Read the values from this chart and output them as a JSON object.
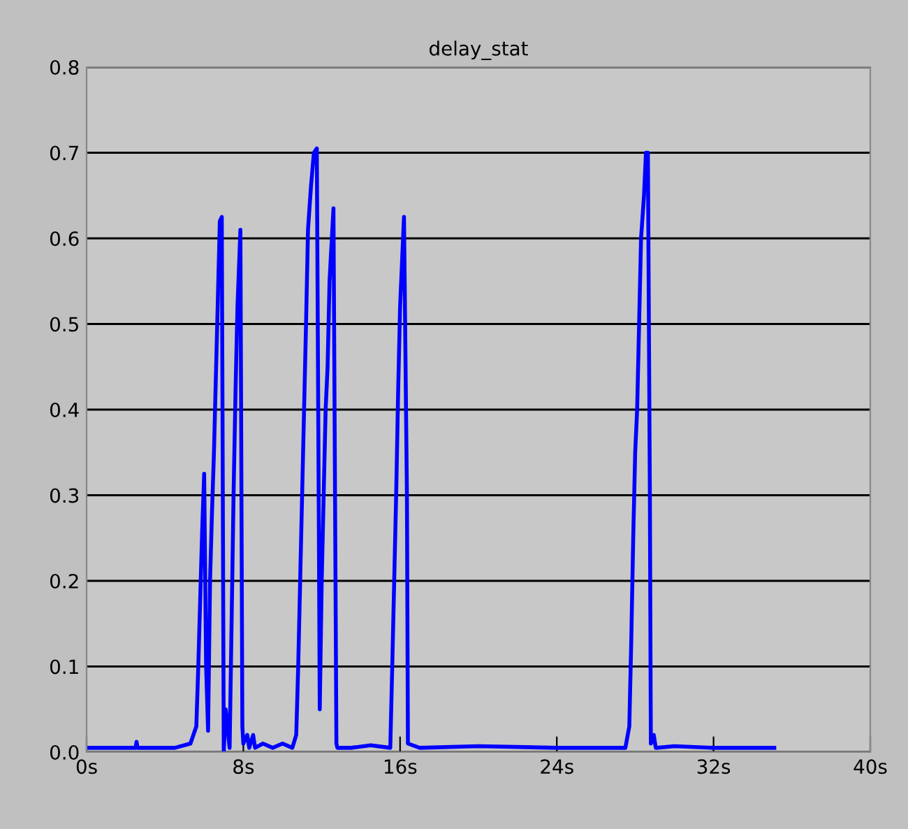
{
  "chart_data": {
    "type": "line",
    "title": "delay_stat",
    "series": [
      {
        "color": "#0000ff",
        "x": [
          0,
          2.5,
          2.55,
          2.6,
          4.5,
          5.3,
          5.6,
          5.7,
          5.8,
          5.9,
          6.0,
          6.1,
          6.2,
          6.3,
          6.4,
          6.5,
          6.6,
          6.7,
          6.8,
          6.9,
          7.0,
          7.1,
          7.3,
          7.4,
          7.5,
          7.6,
          7.7,
          7.85,
          7.95,
          8.0,
          8.2,
          8.3,
          8.5,
          8.6,
          9.0,
          9.5,
          10.0,
          10.5,
          10.7,
          10.8,
          10.9,
          11.0,
          11.1,
          11.2,
          11.3,
          11.45,
          11.6,
          11.75,
          11.85,
          11.9,
          12.0,
          12.1,
          12.2,
          12.3,
          12.4,
          12.6,
          12.75,
          12.8,
          13.5,
          14.5,
          15.5,
          15.6,
          15.7,
          15.8,
          15.9,
          16.0,
          16.2,
          16.35,
          16.4,
          17,
          20,
          24,
          27.5,
          27.7,
          27.8,
          27.9,
          28.0,
          28.1,
          28.2,
          28.3,
          28.45,
          28.55,
          28.65,
          28.75,
          28.8,
          28.95,
          29.05,
          29.1,
          30,
          32,
          35.1
        ],
        "values": [
          0.005,
          0.005,
          0.012,
          0.005,
          0.005,
          0.01,
          0.03,
          0.1,
          0.18,
          0.26,
          0.325,
          0.1,
          0.025,
          0.2,
          0.28,
          0.35,
          0.44,
          0.53,
          0.62,
          0.625,
          0.0,
          0.05,
          0.005,
          0.15,
          0.3,
          0.42,
          0.52,
          0.61,
          0.03,
          0.01,
          0.02,
          0.005,
          0.02,
          0.005,
          0.01,
          0.005,
          0.01,
          0.005,
          0.02,
          0.1,
          0.2,
          0.3,
          0.4,
          0.5,
          0.61,
          0.66,
          0.7,
          0.705,
          0.28,
          0.05,
          0.2,
          0.3,
          0.4,
          0.45,
          0.55,
          0.635,
          0.01,
          0.005,
          0.005,
          0.008,
          0.005,
          0.1,
          0.2,
          0.3,
          0.42,
          0.52,
          0.625,
          0.3,
          0.01,
          0.005,
          0.007,
          0.005,
          0.005,
          0.03,
          0.13,
          0.25,
          0.35,
          0.4,
          0.5,
          0.6,
          0.65,
          0.7,
          0.7,
          0.3,
          0.01,
          0.02,
          0.005,
          0.005,
          0.007,
          0.005,
          0.005
        ]
      }
    ],
    "xlim": [
      0,
      40
    ],
    "xticks": [
      {
        "value": 0,
        "label": "0s"
      },
      {
        "value": 8,
        "label": "8s"
      },
      {
        "value": 16,
        "label": "16s"
      },
      {
        "value": 24,
        "label": "24s"
      },
      {
        "value": 32,
        "label": "32s"
      },
      {
        "value": 40,
        "label": "40s"
      }
    ],
    "ylim": [
      0,
      0.8
    ],
    "yticks": [
      {
        "value": 0,
        "label": "0.0"
      },
      {
        "value": 0.1,
        "label": "0.1"
      },
      {
        "value": 0.2,
        "label": "0.2"
      },
      {
        "value": 0.3,
        "label": "0.3"
      },
      {
        "value": 0.4,
        "label": "0.4"
      },
      {
        "value": 0.5,
        "label": "0.5"
      },
      {
        "value": 0.6,
        "label": "0.6"
      },
      {
        "value": 0.7,
        "label": "0.7"
      },
      {
        "value": 0.8,
        "label": "0.8"
      }
    ],
    "grid": "y",
    "line_style": "solid"
  }
}
